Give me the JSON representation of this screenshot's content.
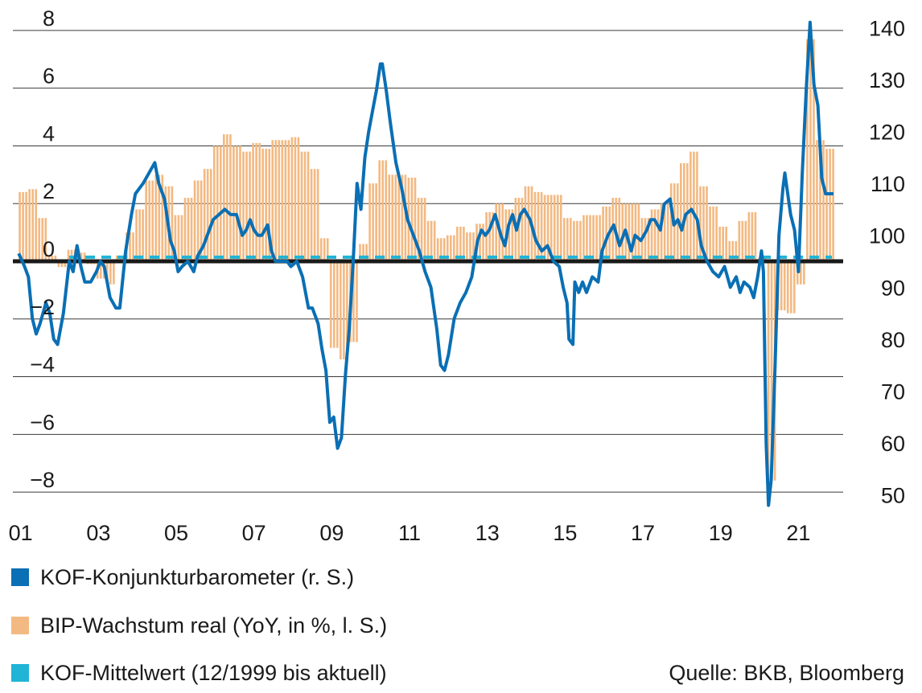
{
  "chart_data": {
    "type": "bar+line",
    "left_axis": {
      "ylim": [
        -9,
        9
      ],
      "ticks": [
        8,
        6,
        4,
        2,
        0,
        -2,
        -4,
        -6,
        -8
      ],
      "tick_labels": [
        "8",
        "6",
        "4",
        "2",
        "0",
        "−2",
        "−4",
        "−6",
        "−8"
      ]
    },
    "right_axis": {
      "ylim": [
        45,
        145
      ],
      "ticks": [
        140,
        130,
        120,
        110,
        100,
        90,
        80,
        70,
        60,
        50
      ],
      "tick_labels": [
        "140",
        "130",
        "120",
        "110",
        "100",
        "90",
        "80",
        "70",
        "60",
        "50"
      ]
    },
    "x_axis": {
      "range": [
        2000.85,
        2022.2
      ],
      "tick_labels": [
        "01",
        "03",
        "05",
        "07",
        "09",
        "11",
        "13",
        "15",
        "17",
        "19",
        "21"
      ],
      "tick_years": [
        2001,
        2003,
        2005,
        2007,
        2009,
        2011,
        2013,
        2015,
        2017,
        2019,
        2021
      ]
    },
    "series": [
      {
        "name": "BIP-Wachstum real (YoY, in %, l. S.)",
        "axis": "left",
        "kind": "bar",
        "color": "#f3b982",
        "points": [
          [
            2001.0,
            2.4
          ],
          [
            2001.25,
            2.5
          ],
          [
            2001.5,
            1.5
          ],
          [
            2001.75,
            0.2
          ],
          [
            2002.0,
            -0.2
          ],
          [
            2002.25,
            0.4
          ],
          [
            2002.5,
            0.3
          ],
          [
            2002.75,
            -0.1
          ],
          [
            2003.0,
            -0.6
          ],
          [
            2003.25,
            -0.8
          ],
          [
            2003.5,
            0.2
          ],
          [
            2003.75,
            1.0
          ],
          [
            2004.0,
            1.8
          ],
          [
            2004.25,
            2.8
          ],
          [
            2004.5,
            3.0
          ],
          [
            2004.75,
            2.6
          ],
          [
            2005.0,
            1.6
          ],
          [
            2005.25,
            2.2
          ],
          [
            2005.5,
            2.8
          ],
          [
            2005.75,
            3.2
          ],
          [
            2006.0,
            4.0
          ],
          [
            2006.25,
            4.4
          ],
          [
            2006.5,
            4.0
          ],
          [
            2006.75,
            3.8
          ],
          [
            2007.0,
            4.1
          ],
          [
            2007.25,
            3.9
          ],
          [
            2007.5,
            4.2
          ],
          [
            2007.75,
            4.2
          ],
          [
            2008.0,
            4.3
          ],
          [
            2008.25,
            3.8
          ],
          [
            2008.5,
            3.2
          ],
          [
            2008.75,
            0.8
          ],
          [
            2009.0,
            -3.0
          ],
          [
            2009.25,
            -3.4
          ],
          [
            2009.5,
            -2.8
          ],
          [
            2009.75,
            0.6
          ],
          [
            2010.0,
            2.7
          ],
          [
            2010.25,
            3.5
          ],
          [
            2010.5,
            3.0
          ],
          [
            2010.75,
            3.0
          ],
          [
            2011.0,
            2.9
          ],
          [
            2011.25,
            2.2
          ],
          [
            2011.5,
            1.4
          ],
          [
            2011.75,
            0.8
          ],
          [
            2012.0,
            0.9
          ],
          [
            2012.25,
            1.2
          ],
          [
            2012.5,
            1.0
          ],
          [
            2012.75,
            1.3
          ],
          [
            2013.0,
            1.7
          ],
          [
            2013.25,
            2.0
          ],
          [
            2013.5,
            1.8
          ],
          [
            2013.75,
            2.2
          ],
          [
            2014.0,
            2.6
          ],
          [
            2014.25,
            2.4
          ],
          [
            2014.5,
            2.3
          ],
          [
            2014.75,
            2.3
          ],
          [
            2015.0,
            1.5
          ],
          [
            2015.25,
            1.4
          ],
          [
            2015.5,
            1.6
          ],
          [
            2015.75,
            1.6
          ],
          [
            2016.0,
            1.9
          ],
          [
            2016.25,
            2.2
          ],
          [
            2016.5,
            2.0
          ],
          [
            2016.75,
            2.0
          ],
          [
            2017.0,
            1.5
          ],
          [
            2017.25,
            1.8
          ],
          [
            2017.5,
            2.0
          ],
          [
            2017.75,
            2.7
          ],
          [
            2018.0,
            3.4
          ],
          [
            2018.25,
            3.8
          ],
          [
            2018.5,
            2.6
          ],
          [
            2018.75,
            1.9
          ],
          [
            2019.0,
            1.2
          ],
          [
            2019.25,
            0.7
          ],
          [
            2019.5,
            1.4
          ],
          [
            2019.75,
            1.7
          ],
          [
            2020.0,
            0.1
          ],
          [
            2020.25,
            -7.6
          ],
          [
            2020.5,
            -1.7
          ],
          [
            2020.75,
            -1.8
          ],
          [
            2021.0,
            -0.8
          ],
          [
            2021.25,
            7.7
          ],
          [
            2021.5,
            4.2
          ],
          [
            2021.75,
            3.9
          ]
        ]
      },
      {
        "name": "KOF-Konjunkturbarometer (r. S.)",
        "axis": "right",
        "kind": "line",
        "color": "#0a6fb4",
        "points": [
          [
            2001.0,
            96.5
          ],
          [
            2001.15,
            94
          ],
          [
            2001.25,
            92
          ],
          [
            2001.35,
            84
          ],
          [
            2001.45,
            81
          ],
          [
            2001.55,
            83
          ],
          [
            2001.7,
            87
          ],
          [
            2001.8,
            85
          ],
          [
            2001.9,
            80
          ],
          [
            2002.0,
            79
          ],
          [
            2002.15,
            85
          ],
          [
            2002.3,
            95
          ],
          [
            2002.4,
            93
          ],
          [
            2002.5,
            98
          ],
          [
            2002.6,
            94
          ],
          [
            2002.7,
            91
          ],
          [
            2002.85,
            91
          ],
          [
            2003.0,
            93
          ],
          [
            2003.1,
            95
          ],
          [
            2003.2,
            94
          ],
          [
            2003.35,
            88
          ],
          [
            2003.5,
            86
          ],
          [
            2003.6,
            86
          ],
          [
            2003.75,
            97
          ],
          [
            2003.9,
            104
          ],
          [
            2004.0,
            108
          ],
          [
            2004.2,
            110
          ],
          [
            2004.35,
            112
          ],
          [
            2004.5,
            114
          ],
          [
            2004.6,
            110
          ],
          [
            2004.75,
            107
          ],
          [
            2004.9,
            99
          ],
          [
            2005.0,
            97
          ],
          [
            2005.1,
            93
          ],
          [
            2005.2,
            94
          ],
          [
            2005.35,
            95
          ],
          [
            2005.5,
            93
          ],
          [
            2005.6,
            96
          ],
          [
            2005.75,
            98
          ],
          [
            2005.9,
            101
          ],
          [
            2006.0,
            103
          ],
          [
            2006.15,
            104
          ],
          [
            2006.3,
            105
          ],
          [
            2006.45,
            104
          ],
          [
            2006.6,
            104
          ],
          [
            2006.75,
            100
          ],
          [
            2006.85,
            101
          ],
          [
            2006.95,
            103
          ],
          [
            2007.05,
            101
          ],
          [
            2007.15,
            100
          ],
          [
            2007.25,
            100
          ],
          [
            2007.4,
            102
          ],
          [
            2007.5,
            97
          ],
          [
            2007.6,
            95
          ],
          [
            2007.75,
            95
          ],
          [
            2007.9,
            95
          ],
          [
            2008.0,
            94
          ],
          [
            2008.15,
            95
          ],
          [
            2008.3,
            92
          ],
          [
            2008.45,
            86
          ],
          [
            2008.55,
            86
          ],
          [
            2008.7,
            83
          ],
          [
            2008.8,
            78
          ],
          [
            2008.9,
            74
          ],
          [
            2009.0,
            64
          ],
          [
            2009.1,
            65
          ],
          [
            2009.2,
            59
          ],
          [
            2009.3,
            61
          ],
          [
            2009.4,
            73
          ],
          [
            2009.5,
            82
          ],
          [
            2009.6,
            95
          ],
          [
            2009.7,
            110
          ],
          [
            2009.8,
            105
          ],
          [
            2009.9,
            115
          ],
          [
            2010.0,
            120
          ],
          [
            2010.1,
            124
          ],
          [
            2010.2,
            128
          ],
          [
            2010.3,
            133
          ],
          [
            2010.35,
            133
          ],
          [
            2010.45,
            128
          ],
          [
            2010.55,
            122
          ],
          [
            2010.7,
            114
          ],
          [
            2010.85,
            109
          ],
          [
            2011.0,
            103
          ],
          [
            2011.15,
            100
          ],
          [
            2011.3,
            97
          ],
          [
            2011.45,
            93
          ],
          [
            2011.6,
            90
          ],
          [
            2011.75,
            82
          ],
          [
            2011.85,
            75
          ],
          [
            2011.95,
            74
          ],
          [
            2012.05,
            77
          ],
          [
            2012.2,
            84
          ],
          [
            2012.35,
            87
          ],
          [
            2012.5,
            89
          ],
          [
            2012.65,
            92
          ],
          [
            2012.8,
            99
          ],
          [
            2012.9,
            101
          ],
          [
            2013.0,
            100
          ],
          [
            2013.1,
            101
          ],
          [
            2013.25,
            104
          ],
          [
            2013.4,
            100
          ],
          [
            2013.5,
            98
          ],
          [
            2013.6,
            102
          ],
          [
            2013.7,
            104
          ],
          [
            2013.8,
            101
          ],
          [
            2013.9,
            104
          ],
          [
            2014.0,
            105
          ],
          [
            2014.15,
            103
          ],
          [
            2014.3,
            99
          ],
          [
            2014.45,
            97
          ],
          [
            2014.6,
            98
          ],
          [
            2014.75,
            95
          ],
          [
            2014.9,
            94
          ],
          [
            2015.0,
            90
          ],
          [
            2015.1,
            87
          ],
          [
            2015.15,
            80
          ],
          [
            2015.25,
            79
          ],
          [
            2015.3,
            91
          ],
          [
            2015.4,
            89
          ],
          [
            2015.5,
            91
          ],
          [
            2015.6,
            89
          ],
          [
            2015.75,
            92
          ],
          [
            2015.9,
            91
          ],
          [
            2016.0,
            97
          ],
          [
            2016.15,
            100
          ],
          [
            2016.3,
            102
          ],
          [
            2016.45,
            98
          ],
          [
            2016.6,
            101
          ],
          [
            2016.75,
            97
          ],
          [
            2016.85,
            100
          ],
          [
            2017.0,
            99
          ],
          [
            2017.15,
            101
          ],
          [
            2017.25,
            103
          ],
          [
            2017.35,
            103
          ],
          [
            2017.5,
            101
          ],
          [
            2017.6,
            106
          ],
          [
            2017.75,
            107
          ],
          [
            2017.85,
            102
          ],
          [
            2017.95,
            103
          ],
          [
            2018.05,
            101
          ],
          [
            2018.15,
            104
          ],
          [
            2018.3,
            105
          ],
          [
            2018.45,
            103
          ],
          [
            2018.55,
            98
          ],
          [
            2018.7,
            95
          ],
          [
            2018.85,
            93
          ],
          [
            2019.0,
            92
          ],
          [
            2019.15,
            94
          ],
          [
            2019.3,
            90
          ],
          [
            2019.45,
            92
          ],
          [
            2019.55,
            89
          ],
          [
            2019.65,
            91
          ],
          [
            2019.8,
            90
          ],
          [
            2019.9,
            88
          ],
          [
            2020.0,
            92
          ],
          [
            2020.1,
            97
          ],
          [
            2020.15,
            93
          ],
          [
            2020.22,
            60
          ],
          [
            2020.28,
            48
          ],
          [
            2020.35,
            53
          ],
          [
            2020.45,
            75
          ],
          [
            2020.55,
            100
          ],
          [
            2020.65,
            109
          ],
          [
            2020.7,
            112
          ],
          [
            2020.85,
            104
          ],
          [
            2020.95,
            101
          ],
          [
            2021.05,
            93
          ],
          [
            2021.15,
            112
          ],
          [
            2021.25,
            128
          ],
          [
            2021.35,
            141
          ],
          [
            2021.45,
            129
          ],
          [
            2021.55,
            125
          ],
          [
            2021.65,
            111
          ],
          [
            2021.75,
            108
          ],
          [
            2021.85,
            108
          ],
          [
            2021.95,
            108
          ]
        ]
      },
      {
        "name": "KOF-Mittelwert (12/1999 bis aktuell)",
        "axis": "right",
        "kind": "dashed-line",
        "color": "#20b4d6",
        "value": 95.8
      }
    ],
    "zero_line": {
      "axis": "left",
      "value": 0,
      "color": "#1a1a1a"
    },
    "grid": true
  },
  "legend": {
    "kof": {
      "label": "KOF-Konjunkturbarometer (r. S.)",
      "color": "#0a6fb4"
    },
    "bip": {
      "label": "BIP-Wachstum real (YoY, in %, l. S.)",
      "color": "#f3b982"
    },
    "mean": {
      "label": "KOF-Mittelwert (12/1999 bis aktuell)",
      "color": "#20b4d6"
    }
  },
  "source": "Quelle: BKB, Bloomberg"
}
